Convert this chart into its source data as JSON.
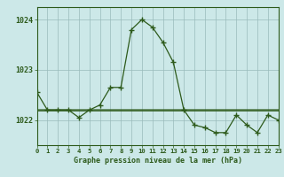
{
  "hours": [
    0,
    1,
    2,
    3,
    4,
    5,
    6,
    7,
    8,
    9,
    10,
    11,
    12,
    13,
    14,
    15,
    16,
    17,
    18,
    19,
    20,
    21,
    22,
    23
  ],
  "pressure_line1": [
    1022.55,
    1022.2,
    1022.2,
    1022.2,
    1022.05,
    1022.2,
    1022.3,
    1022.65,
    1022.65,
    1023.8,
    1024.0,
    1023.85,
    1023.55,
    1023.15,
    1022.2,
    1021.9,
    1021.85,
    1021.75,
    1021.75,
    1022.1,
    1021.9,
    1021.75,
    1022.1,
    1022.0
  ],
  "pressure_flat": [
    1022.2,
    1022.2,
    1022.2,
    1022.2,
    1022.2,
    1022.2,
    1022.2,
    1022.2,
    1022.2,
    1022.2,
    1022.2,
    1022.2,
    1022.2,
    1022.2,
    1022.2,
    1022.2,
    1022.2,
    1022.2,
    1022.2,
    1022.2,
    1022.2,
    1022.2,
    1022.2,
    1022.2
  ],
  "ylim": [
    1021.5,
    1024.25
  ],
  "yticks": [
    1022,
    1023,
    1024
  ],
  "line_color": "#2d5a1b",
  "bg_color": "#cce8e8",
  "xlabel": "Graphe pression niveau de la mer (hPa)",
  "grid_color": "#99bbbb",
  "fig_bg": "#cce8e8",
  "title_color": "#2d5a1b"
}
